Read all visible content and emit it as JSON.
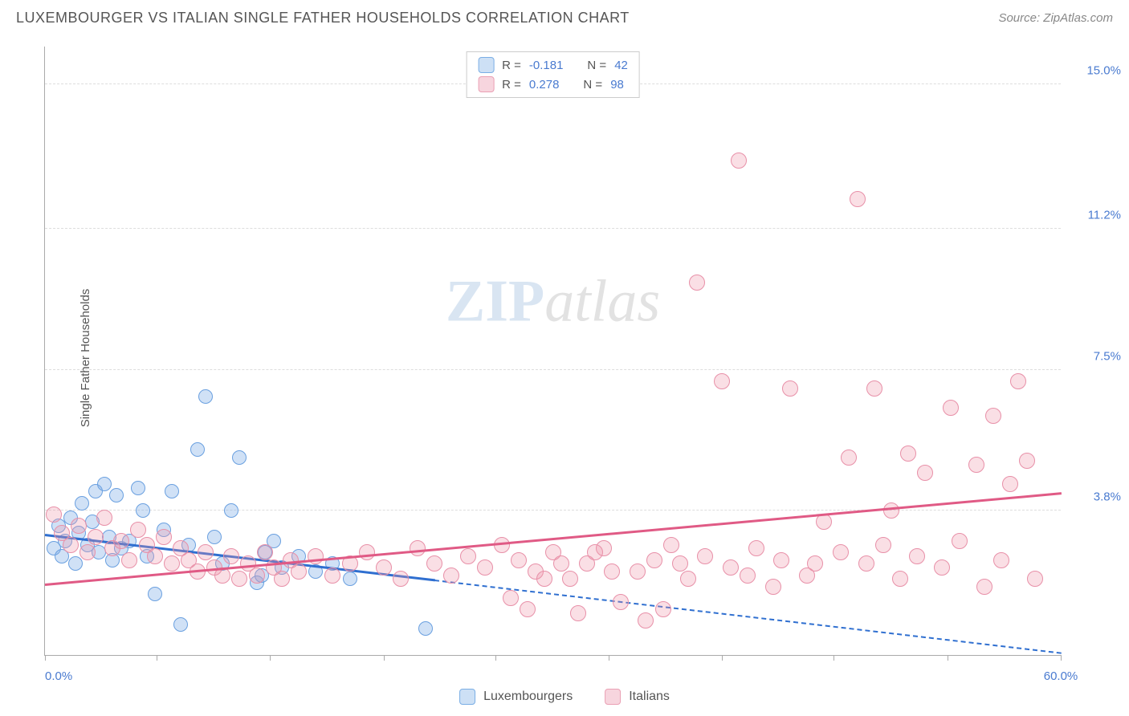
{
  "header": {
    "title": "LUXEMBOURGER VS ITALIAN SINGLE FATHER HOUSEHOLDS CORRELATION CHART",
    "source": "Source: ZipAtlas.com"
  },
  "watermark": {
    "bold": "ZIP",
    "light": "atlas"
  },
  "chart": {
    "type": "scatter",
    "y_axis_label": "Single Father Households",
    "background_color": "#ffffff",
    "grid_color": "#dddddd",
    "axis_color": "#aaaaaa",
    "xlim": [
      0,
      60
    ],
    "ylim": [
      0,
      16
    ],
    "x_ticks": [
      0,
      6.6,
      13.3,
      20,
      26.6,
      33.3,
      40,
      46.6,
      53.3,
      60
    ],
    "x_tick_labels": {
      "0": "0.0%",
      "60": "60.0%"
    },
    "y_ticks": [
      3.8,
      7.5,
      11.2,
      15.0
    ],
    "y_tick_labels": [
      "3.8%",
      "7.5%",
      "11.2%",
      "15.0%"
    ],
    "series": [
      {
        "name": "Luxembourgers",
        "color_fill": "rgba(120, 170, 230, 0.35)",
        "color_stroke": "#6aa0e0",
        "swatch_fill": "#cde0f5",
        "swatch_stroke": "#7aaee5",
        "marker_radius": 9,
        "R": "-0.181",
        "N": "42",
        "trend": {
          "x1": 0,
          "y1": 3.2,
          "x2": 60,
          "y2": 0.1,
          "solid_until_x": 23,
          "color": "#2f6fd0",
          "width": 3
        },
        "points": [
          [
            0.5,
            2.8
          ],
          [
            0.8,
            3.4
          ],
          [
            1.0,
            2.6
          ],
          [
            1.2,
            3.0
          ],
          [
            1.5,
            3.6
          ],
          [
            1.8,
            2.4
          ],
          [
            2.0,
            3.2
          ],
          [
            2.2,
            4.0
          ],
          [
            2.5,
            2.9
          ],
          [
            2.8,
            3.5
          ],
          [
            3.0,
            4.3
          ],
          [
            3.2,
            2.7
          ],
          [
            3.5,
            4.5
          ],
          [
            3.8,
            3.1
          ],
          [
            4.0,
            2.5
          ],
          [
            4.2,
            4.2
          ],
          [
            4.5,
            2.8
          ],
          [
            5.0,
            3.0
          ],
          [
            5.5,
            4.4
          ],
          [
            6.0,
            2.6
          ],
          [
            6.5,
            1.6
          ],
          [
            7.0,
            3.3
          ],
          [
            7.5,
            4.3
          ],
          [
            8.0,
            0.8
          ],
          [
            8.5,
            2.9
          ],
          [
            9.0,
            5.4
          ],
          [
            9.5,
            6.8
          ],
          [
            10.0,
            3.1
          ],
          [
            10.5,
            2.4
          ],
          [
            11.0,
            3.8
          ],
          [
            11.5,
            5.2
          ],
          [
            12.5,
            1.9
          ],
          [
            13.0,
            2.7
          ],
          [
            13.5,
            3.0
          ],
          [
            14.0,
            2.3
          ],
          [
            15.0,
            2.6
          ],
          [
            16.0,
            2.2
          ],
          [
            17.0,
            2.4
          ],
          [
            18.0,
            2.0
          ],
          [
            22.5,
            0.7
          ],
          [
            12.8,
            2.1
          ],
          [
            5.8,
            3.8
          ]
        ]
      },
      {
        "name": "Italians",
        "color_fill": "rgba(240, 150, 170, 0.30)",
        "color_stroke": "#e890a8",
        "swatch_fill": "#f7d5de",
        "swatch_stroke": "#eaa0b4",
        "marker_radius": 10,
        "R": "0.278",
        "N": "98",
        "trend": {
          "x1": 0,
          "y1": 1.9,
          "x2": 60,
          "y2": 4.3,
          "solid_until_x": 60,
          "color": "#e05a85",
          "width": 3
        },
        "points": [
          [
            0.5,
            3.7
          ],
          [
            1.0,
            3.2
          ],
          [
            1.5,
            2.9
          ],
          [
            2.0,
            3.4
          ],
          [
            2.5,
            2.7
          ],
          [
            3.0,
            3.1
          ],
          [
            3.5,
            3.6
          ],
          [
            4.0,
            2.8
          ],
          [
            4.5,
            3.0
          ],
          [
            5.0,
            2.5
          ],
          [
            5.5,
            3.3
          ],
          [
            6.0,
            2.9
          ],
          [
            6.5,
            2.6
          ],
          [
            7.0,
            3.1
          ],
          [
            7.5,
            2.4
          ],
          [
            8.0,
            2.8
          ],
          [
            8.5,
            2.5
          ],
          [
            9.0,
            2.2
          ],
          [
            9.5,
            2.7
          ],
          [
            10.0,
            2.3
          ],
          [
            10.5,
            2.1
          ],
          [
            11.0,
            2.6
          ],
          [
            11.5,
            2.0
          ],
          [
            12.0,
            2.4
          ],
          [
            12.5,
            2.1
          ],
          [
            13.0,
            2.7
          ],
          [
            13.5,
            2.3
          ],
          [
            14.0,
            2.0
          ],
          [
            14.5,
            2.5
          ],
          [
            15.0,
            2.2
          ],
          [
            16.0,
            2.6
          ],
          [
            17.0,
            2.1
          ],
          [
            18.0,
            2.4
          ],
          [
            19.0,
            2.7
          ],
          [
            20.0,
            2.3
          ],
          [
            21.0,
            2.0
          ],
          [
            22.0,
            2.8
          ],
          [
            23.0,
            2.4
          ],
          [
            24.0,
            2.1
          ],
          [
            25.0,
            2.6
          ],
          [
            26.0,
            2.3
          ],
          [
            27.0,
            2.9
          ],
          [
            27.5,
            1.5
          ],
          [
            28.0,
            2.5
          ],
          [
            28.5,
            1.2
          ],
          [
            29.0,
            2.2
          ],
          [
            30.0,
            2.7
          ],
          [
            31.0,
            2.0
          ],
          [
            31.5,
            1.1
          ],
          [
            32.0,
            2.4
          ],
          [
            33.0,
            2.8
          ],
          [
            34.0,
            1.4
          ],
          [
            35.0,
            2.2
          ],
          [
            35.5,
            0.9
          ],
          [
            36.0,
            2.5
          ],
          [
            36.5,
            1.2
          ],
          [
            37.0,
            2.9
          ],
          [
            38.0,
            2.0
          ],
          [
            38.5,
            9.8
          ],
          [
            39.0,
            2.6
          ],
          [
            40.0,
            7.2
          ],
          [
            40.5,
            2.3
          ],
          [
            41.0,
            13.0
          ],
          [
            42.0,
            2.8
          ],
          [
            43.0,
            1.8
          ],
          [
            43.5,
            2.5
          ],
          [
            44.0,
            7.0
          ],
          [
            45.0,
            2.1
          ],
          [
            46.0,
            3.5
          ],
          [
            47.0,
            2.7
          ],
          [
            47.5,
            5.2
          ],
          [
            48.0,
            12.0
          ],
          [
            48.5,
            2.4
          ],
          [
            49.0,
            7.0
          ],
          [
            50.0,
            3.8
          ],
          [
            50.5,
            2.0
          ],
          [
            51.0,
            5.3
          ],
          [
            51.5,
            2.6
          ],
          [
            52.0,
            4.8
          ],
          [
            53.0,
            2.3
          ],
          [
            53.5,
            6.5
          ],
          [
            54.0,
            3.0
          ],
          [
            55.0,
            5.0
          ],
          [
            55.5,
            1.8
          ],
          [
            56.0,
            6.3
          ],
          [
            56.5,
            2.5
          ],
          [
            57.0,
            4.5
          ],
          [
            57.5,
            7.2
          ],
          [
            58.0,
            5.1
          ],
          [
            58.5,
            2.0
          ],
          [
            29.5,
            2.0
          ],
          [
            30.5,
            2.4
          ],
          [
            32.5,
            2.7
          ],
          [
            33.5,
            2.2
          ],
          [
            37.5,
            2.4
          ],
          [
            41.5,
            2.1
          ],
          [
            45.5,
            2.4
          ],
          [
            49.5,
            2.9
          ]
        ]
      }
    ]
  },
  "labels": {
    "R_prefix": "R = ",
    "N_prefix": "N = "
  }
}
